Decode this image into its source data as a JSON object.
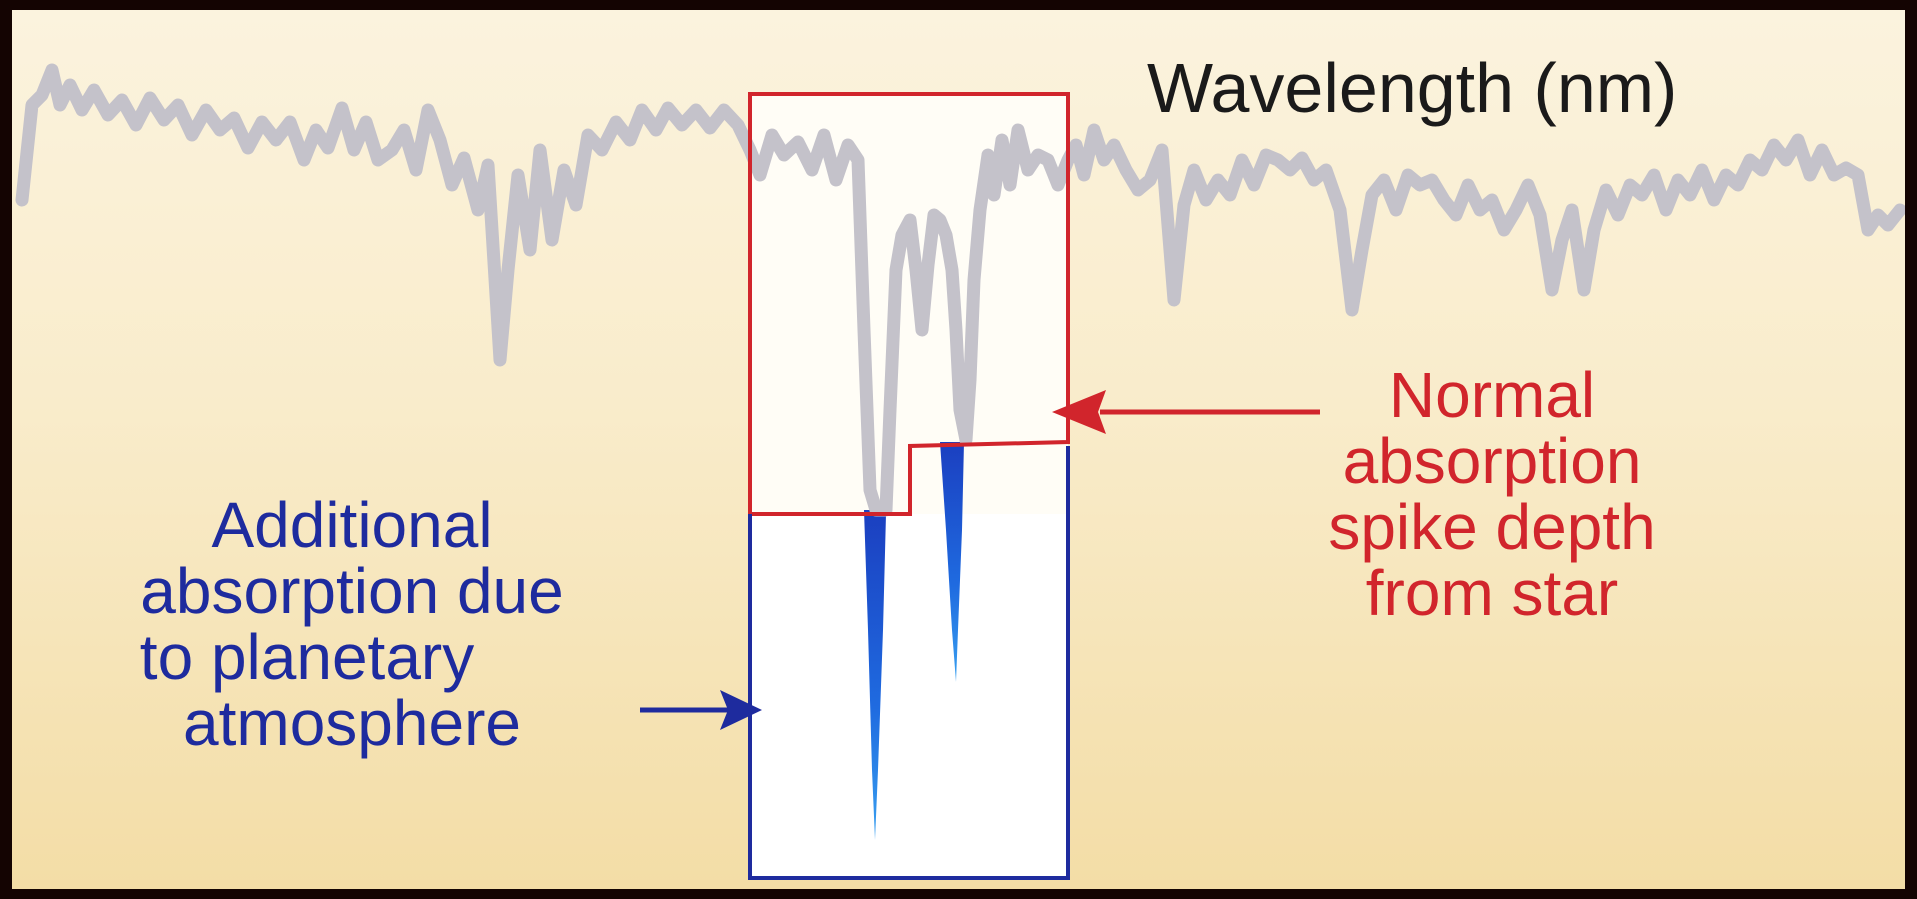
{
  "diagram": {
    "axis_label": "Wavelength (nm)",
    "annotations": [
      {
        "id": "normal",
        "lines": [
          "Normal",
          "absorption",
          "spike depth",
          "from star"
        ]
      },
      {
        "id": "additional",
        "lines": [
          "Additional",
          "absorption due",
          "to planetary",
          "atmosphere"
        ]
      }
    ],
    "colors": {
      "spectrum": "#c4c2ca",
      "normal": "#d1252c",
      "additional": "#1e2b9e",
      "planet_absorption": "#1a5bd6",
      "axis_text": "#1a1a1a"
    }
  }
}
